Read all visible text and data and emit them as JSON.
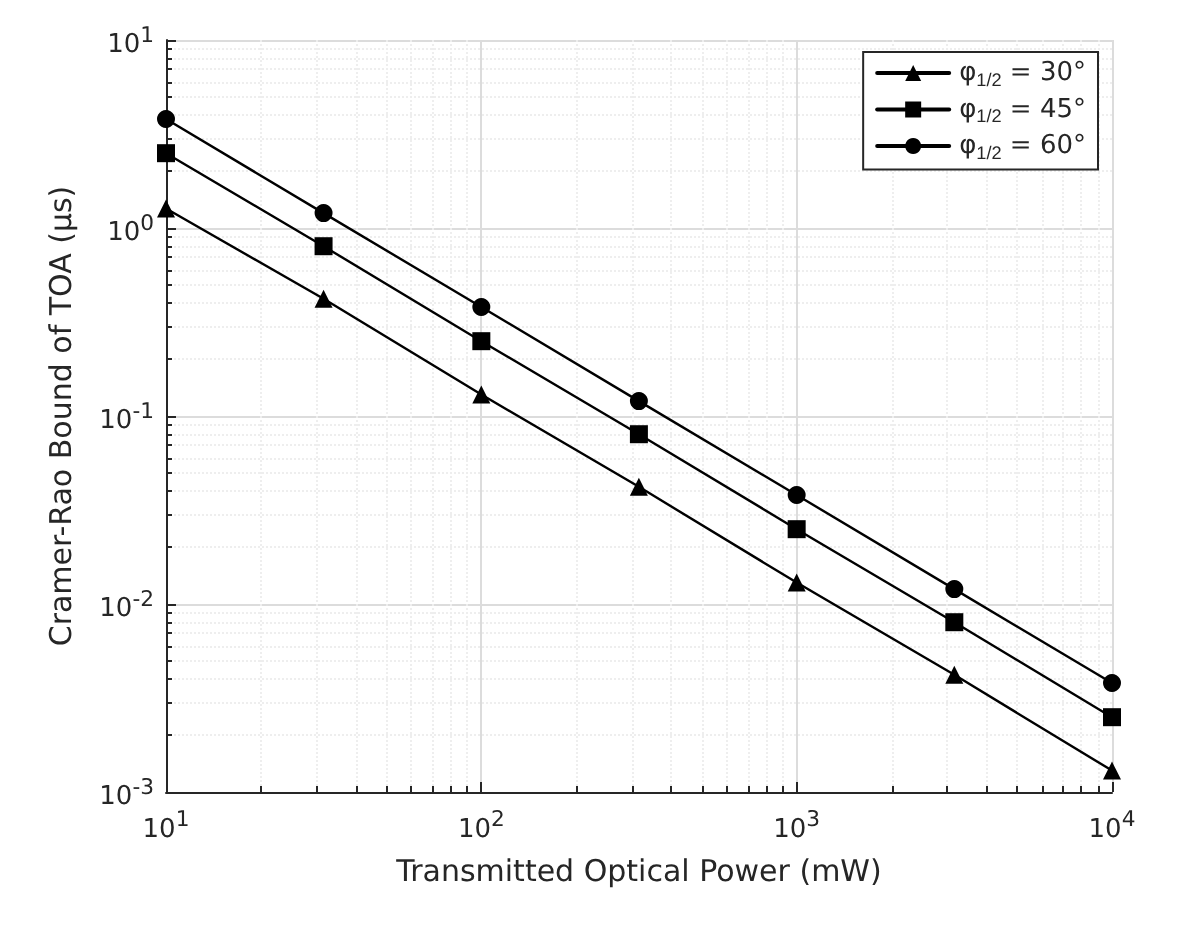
{
  "chart_data": {
    "type": "line",
    "xlabel": "Transmitted Optical Power (mW)",
    "ylabel": "Cramer-Rao Bound of TOA (μs)",
    "log": "xy",
    "grid": true,
    "legend": "top right",
    "line_style": "solid",
    "x": [
      10,
      31.6,
      100,
      316,
      1000,
      3162,
      10000
    ],
    "xlim": [
      10,
      10000
    ],
    "xticks": [
      {
        "value": 10,
        "label": "10$^{1}$"
      },
      {
        "value": 100,
        "label": "10$^{2}$"
      },
      {
        "value": 1000,
        "label": "10$^{3}$"
      },
      {
        "value": 10000,
        "label": "10$^{4}$"
      }
    ],
    "ylim": [
      0.001,
      10
    ],
    "yticks": [
      {
        "value": 0.001,
        "label": "10$^{-3}$"
      },
      {
        "value": 0.01,
        "label": "10$^{-2}$"
      },
      {
        "value": 0.1,
        "label": "10$^{-1}$"
      },
      {
        "value": 1,
        "label": "10$^{0}$"
      },
      {
        "value": 10,
        "label": "10$^{1}$"
      }
    ],
    "series": [
      {
        "name": "φ$_{1/2}$ = 30°",
        "color": "#000000",
        "marker": "triangle",
        "values": [
          1.27,
          0.42,
          0.13,
          0.042,
          0.013,
          0.0042,
          0.0013
        ]
      },
      {
        "name": "φ$_{1/2}$ = 45°",
        "color": "#000000",
        "marker": "square",
        "values": [
          2.5,
          0.8,
          0.25,
          0.08,
          0.025,
          0.008,
          0.0025
        ]
      },
      {
        "name": "φ$_{1/2}$ = 60°",
        "color": "#000000",
        "marker": "circle",
        "values": [
          3.8,
          1.2,
          0.38,
          0.12,
          0.038,
          0.012,
          0.0038
        ]
      }
    ]
  }
}
